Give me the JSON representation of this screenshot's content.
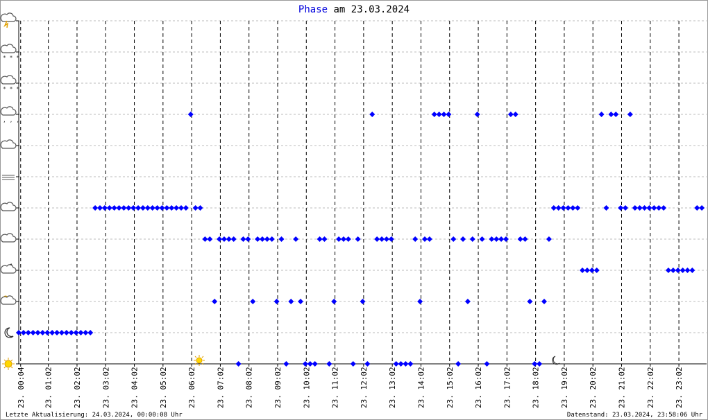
{
  "chart_data": {
    "type": "scatter",
    "title_highlight": "Phase",
    "title": "am 23.03.2024",
    "footer_left": "Letzte Aktualisierung: 24.03.2024, 00:00:08 Uhr",
    "footer_right": "Datenstand: 23.03.2024, 23:58:06 Uhr",
    "xlim": [
      0,
      1440
    ],
    "ylim": [
      0,
      11
    ],
    "yticks": [
      0,
      1,
      2,
      3,
      4,
      5,
      6,
      7,
      8,
      9,
      10,
      11
    ],
    "xticks": [
      {
        "value": 4,
        "label": "23. 00:04"
      },
      {
        "value": 62,
        "label": "23. 01:02"
      },
      {
        "value": 122,
        "label": "23. 02:02"
      },
      {
        "value": 182,
        "label": "23. 03:02"
      },
      {
        "value": 242,
        "label": "23. 04:02"
      },
      {
        "value": 302,
        "label": "23. 05:02"
      },
      {
        "value": 362,
        "label": "23. 06:02"
      },
      {
        "value": 422,
        "label": "23. 07:02"
      },
      {
        "value": 482,
        "label": "23. 08:02"
      },
      {
        "value": 542,
        "label": "23. 09:02"
      },
      {
        "value": 602,
        "label": "23. 10:02"
      },
      {
        "value": 662,
        "label": "23. 11:02"
      },
      {
        "value": 722,
        "label": "23. 12:02"
      },
      {
        "value": 782,
        "label": "23. 13:02"
      },
      {
        "value": 842,
        "label": "23. 14:02"
      },
      {
        "value": 902,
        "label": "23. 15:02"
      },
      {
        "value": 962,
        "label": "23. 16:02"
      },
      {
        "value": 1022,
        "label": "23. 17:02"
      },
      {
        "value": 1082,
        "label": "23. 18:02"
      },
      {
        "value": 1142,
        "label": "23. 19:02"
      },
      {
        "value": 1202,
        "label": "23. 20:02"
      },
      {
        "value": 1262,
        "label": "23. 21:02"
      },
      {
        "value": 1322,
        "label": "23. 22:02"
      },
      {
        "value": 1382,
        "label": "23. 23:02"
      }
    ],
    "grid": true,
    "color": "#0000ff",
    "x": [
      0,
      10,
      20,
      30,
      40,
      50,
      60,
      70,
      80,
      90,
      100,
      110,
      120,
      130,
      140,
      150,
      160,
      170,
      180,
      190,
      200,
      210,
      220,
      230,
      240,
      250,
      260,
      270,
      280,
      290,
      300,
      310,
      320,
      330,
      340,
      350,
      360,
      370,
      380,
      390,
      400,
      410,
      420,
      430,
      440,
      450,
      460,
      470,
      480,
      490,
      500,
      510,
      520,
      530,
      540,
      550,
      560,
      570,
      580,
      590,
      600,
      610,
      620,
      630,
      640,
      650,
      660,
      670,
      680,
      690,
      700,
      710,
      720,
      730,
      740,
      750,
      760,
      770,
      780,
      790,
      800,
      810,
      820,
      830,
      840,
      850,
      860,
      870,
      880,
      890,
      900,
      910,
      920,
      930,
      940,
      950,
      960,
      970,
      980,
      990,
      1000,
      1010,
      1020,
      1030,
      1040,
      1050,
      1060,
      1070,
      1080,
      1090,
      1100,
      1110,
      1120,
      1130,
      1140,
      1150,
      1160,
      1170,
      1180,
      1190,
      1200,
      1210,
      1220,
      1230,
      1240,
      1250,
      1260,
      1270,
      1280,
      1290,
      1300,
      1310,
      1320,
      1330,
      1340,
      1350,
      1360,
      1370,
      1380,
      1390,
      1400,
      1410,
      1420,
      1430
    ],
    "values": [
      1,
      1,
      1,
      1,
      1,
      1,
      1,
      1,
      1,
      1,
      1,
      1,
      1,
      1,
      1,
      1,
      5,
      5,
      5,
      5,
      5,
      5,
      5,
      5,
      5,
      5,
      5,
      5,
      5,
      5,
      5,
      5,
      5,
      5,
      5,
      5,
      8,
      5,
      5,
      4,
      4,
      2,
      4,
      4,
      4,
      4,
      0,
      4,
      4,
      2,
      4,
      4,
      4,
      4,
      2,
      4,
      0,
      2,
      4,
      2,
      0,
      0,
      0,
      4,
      4,
      0,
      2,
      4,
      4,
      4,
      0,
      4,
      2,
      0,
      8,
      4,
      4,
      4,
      4,
      0,
      0,
      0,
      0,
      4,
      2,
      4,
      4,
      8,
      8,
      8,
      8,
      4,
      0,
      4,
      2,
      4,
      8,
      4,
      0,
      4,
      4,
      4,
      4,
      8,
      8,
      4,
      4,
      2,
      0,
      0,
      2,
      4,
      5,
      5,
      5,
      5,
      5,
      5,
      3,
      3,
      3,
      3,
      8,
      5,
      8,
      8,
      5,
      5,
      8,
      5,
      5,
      5,
      5,
      5,
      5,
      5,
      3,
      3,
      3,
      3,
      3,
      3,
      5,
      5
    ]
  }
}
